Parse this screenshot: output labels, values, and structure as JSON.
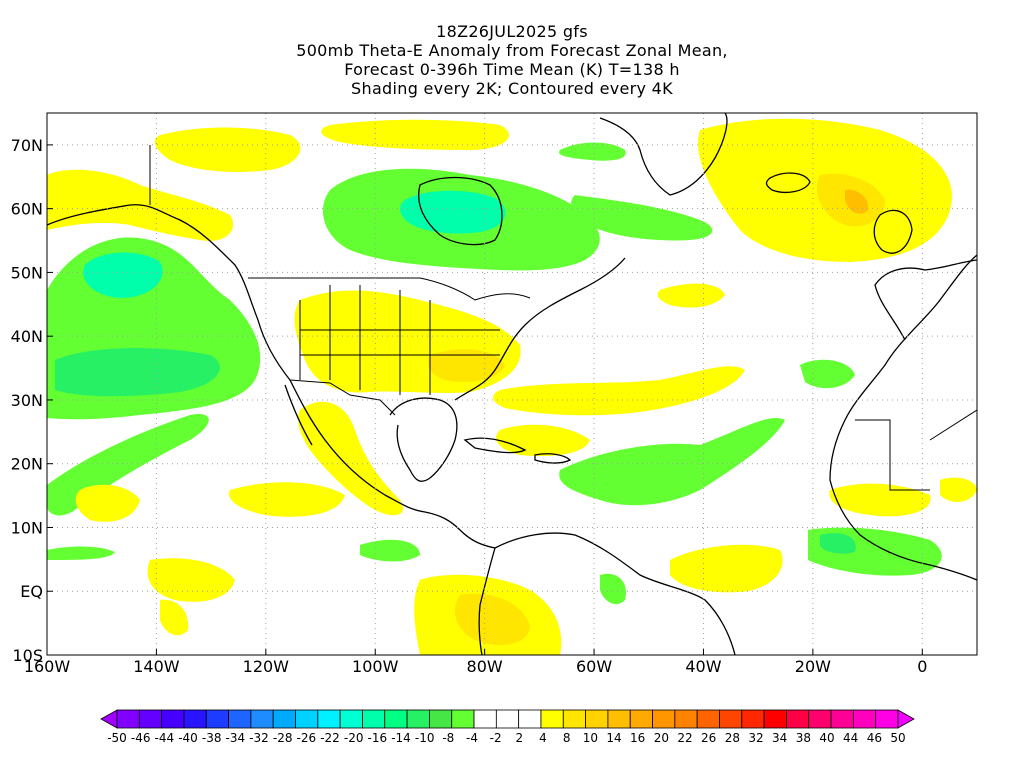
{
  "title_lines": [
    "18Z26JUL2025 gfs",
    "500mb Theta-E Anomaly from Forecast Zonal Mean,",
    "Forecast 0-396h Time Mean (K) T=138 h",
    "Shading every 2K; Contoured every 4K"
  ],
  "map": {
    "lon_range": [
      -160,
      10
    ],
    "lat_range": [
      -10,
      75
    ],
    "lon_ticks": [
      {
        "lon": -160,
        "label": "160W"
      },
      {
        "lon": -140,
        "label": "140W"
      },
      {
        "lon": -120,
        "label": "120W"
      },
      {
        "lon": -100,
        "label": "100W"
      },
      {
        "lon": -80,
        "label": "80W"
      },
      {
        "lon": -60,
        "label": "60W"
      },
      {
        "lon": -40,
        "label": "40W"
      },
      {
        "lon": -20,
        "label": "20W"
      },
      {
        "lon": 0,
        "label": "0"
      }
    ],
    "lat_ticks": [
      {
        "lat": 70,
        "label": "70N"
      },
      {
        "lat": 60,
        "label": "60N"
      },
      {
        "lat": 50,
        "label": "50N"
      },
      {
        "lat": 40,
        "label": "40N"
      },
      {
        "lat": 30,
        "label": "30N"
      },
      {
        "lat": 20,
        "label": "20N"
      },
      {
        "lat": 10,
        "label": "10N"
      },
      {
        "lat": 0,
        "label": "EQ"
      },
      {
        "lat": -10,
        "label": "10S"
      }
    ],
    "grid": true
  },
  "colorbar": {
    "colors": [
      "#a000ff",
      "#8200ff",
      "#6400ff",
      "#4600ff",
      "#2814ff",
      "#1e3cff",
      "#1e64ff",
      "#1e8cff",
      "#00aaff",
      "#00d2ff",
      "#00f0ff",
      "#00ffd2",
      "#00ffaa",
      "#00ff82",
      "#28f064",
      "#46e646",
      "#64ff32",
      "#ffffff",
      "#ffffff",
      "#ffffff",
      "#ffff00",
      "#ffe600",
      "#ffd200",
      "#ffbe00",
      "#ffaa00",
      "#ff9600",
      "#ff8200",
      "#ff6400",
      "#ff4600",
      "#ff2800",
      "#ff0000",
      "#ff0046",
      "#ff006e",
      "#ff0096",
      "#ff00be",
      "#ff00e6",
      "#f000ff"
    ],
    "labels": [
      "-50",
      "-46",
      "-44",
      "-40",
      "-38",
      "-34",
      "-32",
      "-28",
      "-26",
      "-22",
      "-20",
      "-16",
      "-14",
      "-10",
      "-8",
      "-4",
      "-2",
      "2",
      "4",
      "8",
      "10",
      "14",
      "16",
      "20",
      "22",
      "26",
      "28",
      "32",
      "34",
      "38",
      "40",
      "44",
      "46",
      "50"
    ]
  },
  "colors": {
    "anomaly_light_green": "#64ff32",
    "anomaly_green": "#28f064",
    "anomaly_teal": "#00ffaa",
    "anomaly_yellow": "#ffff00",
    "anomaly_gold": "#ffe600",
    "anomaly_orange": "#ffbe00",
    "coast": "#000000",
    "grid": "#a0a0a0"
  }
}
